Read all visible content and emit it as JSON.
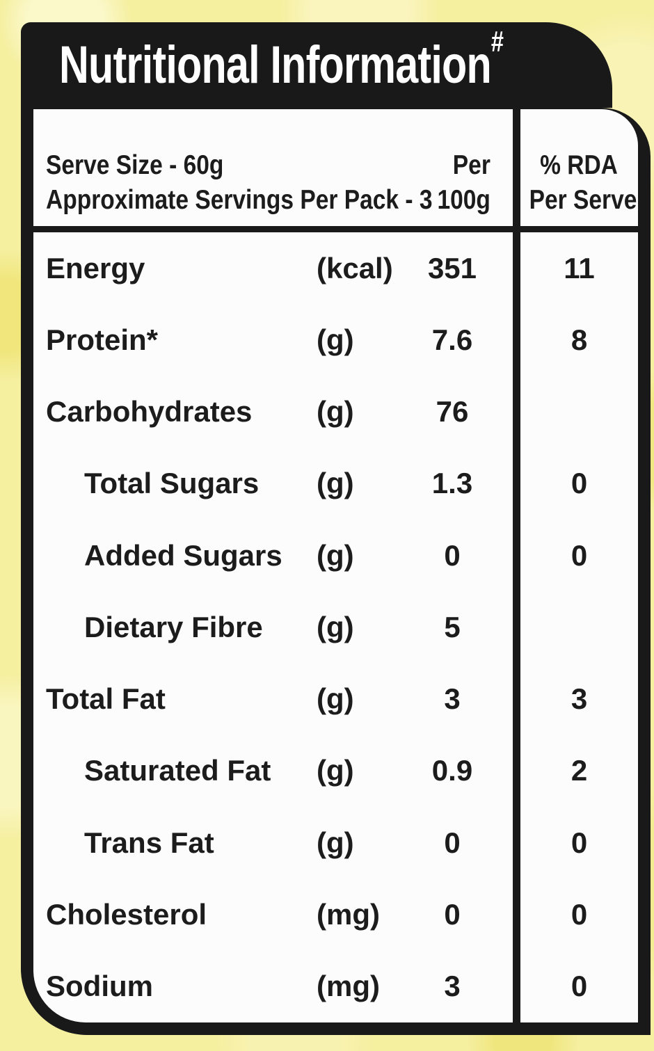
{
  "title": "Nutritional Information",
  "title_superscript": "#",
  "header": {
    "serve_size_line": "Serve Size - 60g",
    "servings_line": "Approximate Servings Per Pack - 3",
    "col_per_line1": "Per",
    "col_per_line2": "100g",
    "col_rda_line1": "% RDA",
    "col_rda_line2": "Per Serve"
  },
  "rows": [
    {
      "name": "Energy",
      "unit": "(kcal)",
      "per100g": "351",
      "rda": "11",
      "indent": false
    },
    {
      "name": "Protein*",
      "unit": "(g)",
      "per100g": "7.6",
      "rda": "8",
      "indent": false
    },
    {
      "name": "Carbohydrates",
      "unit": "(g)",
      "per100g": "76",
      "rda": "",
      "indent": false
    },
    {
      "name": "Total Sugars",
      "unit": "(g)",
      "per100g": "1.3",
      "rda": "0",
      "indent": true
    },
    {
      "name": "Added Sugars",
      "unit": "(g)",
      "per100g": "0",
      "rda": "0",
      "indent": true
    },
    {
      "name": "Dietary Fibre",
      "unit": "(g)",
      "per100g": "5",
      "rda": "",
      "indent": true
    },
    {
      "name": "Total Fat",
      "unit": "(g)",
      "per100g": "3",
      "rda": "3",
      "indent": false
    },
    {
      "name": "Saturated Fat",
      "unit": "(g)",
      "per100g": "0.9",
      "rda": "2",
      "indent": true
    },
    {
      "name": "Trans Fat",
      "unit": "(g)",
      "per100g": "0",
      "rda": "0",
      "indent": true
    },
    {
      "name": "Cholesterol",
      "unit": "(mg)",
      "per100g": "0",
      "rda": "0",
      "indent": false
    },
    {
      "name": "Sodium",
      "unit": "(mg)",
      "per100g": "3",
      "rda": "0",
      "indent": false
    }
  ],
  "colors": {
    "background": "#f5efa0",
    "frame": "#191919",
    "panel": "#fcfcfc",
    "text": "#1c1c1c"
  }
}
